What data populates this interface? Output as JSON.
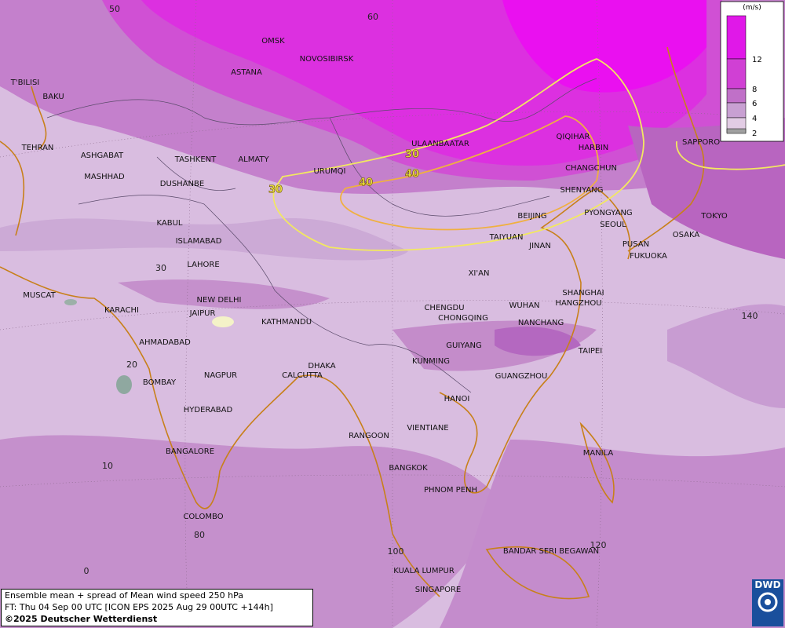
{
  "map": {
    "legend": {
      "unit": "(m/s)",
      "labels": [
        "12",
        "8",
        "6",
        "4",
        "2"
      ]
    },
    "cities": [
      "OMSK",
      "NOVOSIBIRSK",
      "ASTANA",
      "T'BILISI",
      "BAKU",
      "TEHRAN",
      "ASHGABAT",
      "MASHHAD",
      "TASHKENT",
      "ALMATY",
      "DUSHANBE",
      "URUMQI",
      "ULAANBAATAR",
      "QIQIHAR",
      "HARBIN",
      "CHANGCHUN",
      "SHENYANG",
      "SAPPORO",
      "KABUL",
      "ISLAMABAD",
      "LAHORE",
      "BEIJING",
      "PYONGYANG",
      "SEOUL",
      "TOKYO",
      "OSAKA",
      "PUSAN",
      "FUKUOKA",
      "TAIYUAN",
      "JINAN",
      "XI'AN",
      "MUSCAT",
      "NEW DELHI",
      "KARACHI",
      "JAIPUR",
      "KATHMANDU",
      "CHENGDU",
      "CHONGQING",
      "WUHAN",
      "SHANGHAI",
      "HANGZHOU",
      "NANCHANG",
      "AHMADABAD",
      "GUIYANG",
      "TAIPEI",
      "KUNMING",
      "DHAKA",
      "CALCUTTA",
      "NAGPUR",
      "GUANGZHOU",
      "BOMBAY",
      "HANOI",
      "HYDERABAD",
      "RANGOON",
      "VIENTIANE",
      "MANILA",
      "BANGALORE",
      "BANGKOK",
      "PHNOM PENH",
      "COLOMBO",
      "BANDAR SERI BEGAWAN",
      "KUALA LUMPUR",
      "SINGAPORE"
    ],
    "grid_labels": [
      "50",
      "60",
      "30",
      "20",
      "10",
      "0",
      "80",
      "100",
      "120",
      "140"
    ],
    "contour_labels": [
      "30",
      "40",
      "40",
      "30"
    ],
    "footer": {
      "line1": "Ensemble mean + spread of Mean wind speed 250 hPa",
      "line2": "FT: Thu 04 Sep 00 UTC [ICON EPS 2025 Aug 29 00UTC +144h]",
      "line3": "©2025 Deutscher Wetterdienst"
    },
    "logo": "DWD"
  }
}
